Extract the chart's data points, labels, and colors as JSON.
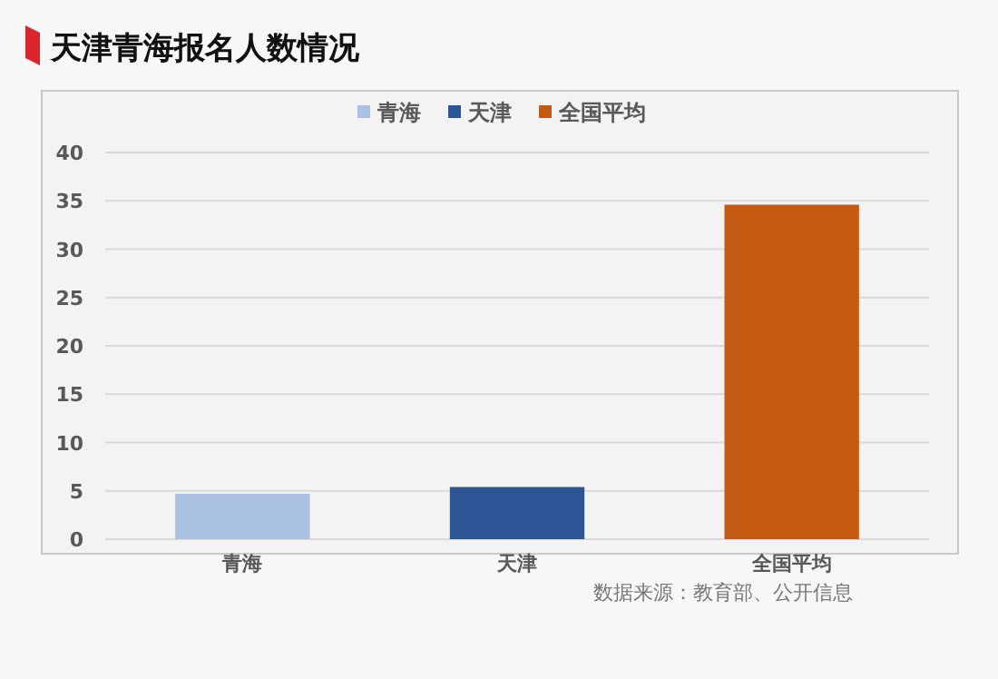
{
  "chart_data": {
    "type": "bar",
    "title": "天津青海报名人数情况",
    "categories": [
      "青海",
      "天津",
      "全国平均"
    ],
    "stacked": true,
    "series": [
      {
        "name": "青海",
        "color": "#abc1e3",
        "values": [
          4.7,
          null,
          null
        ]
      },
      {
        "name": "天津",
        "color": "#2e5596",
        "values": [
          null,
          5.4,
          null
        ]
      },
      {
        "name": "全国平均",
        "color": "#c45911",
        "values": [
          null,
          null,
          34.6
        ]
      }
    ],
    "ylim": [
      0,
      40
    ],
    "yticks": [
      0,
      5,
      10,
      15,
      20,
      25,
      30,
      35,
      40
    ],
    "grid": "y",
    "legend": "top",
    "annotations": [
      "数据来源：教育部、公开信息"
    ]
  }
}
